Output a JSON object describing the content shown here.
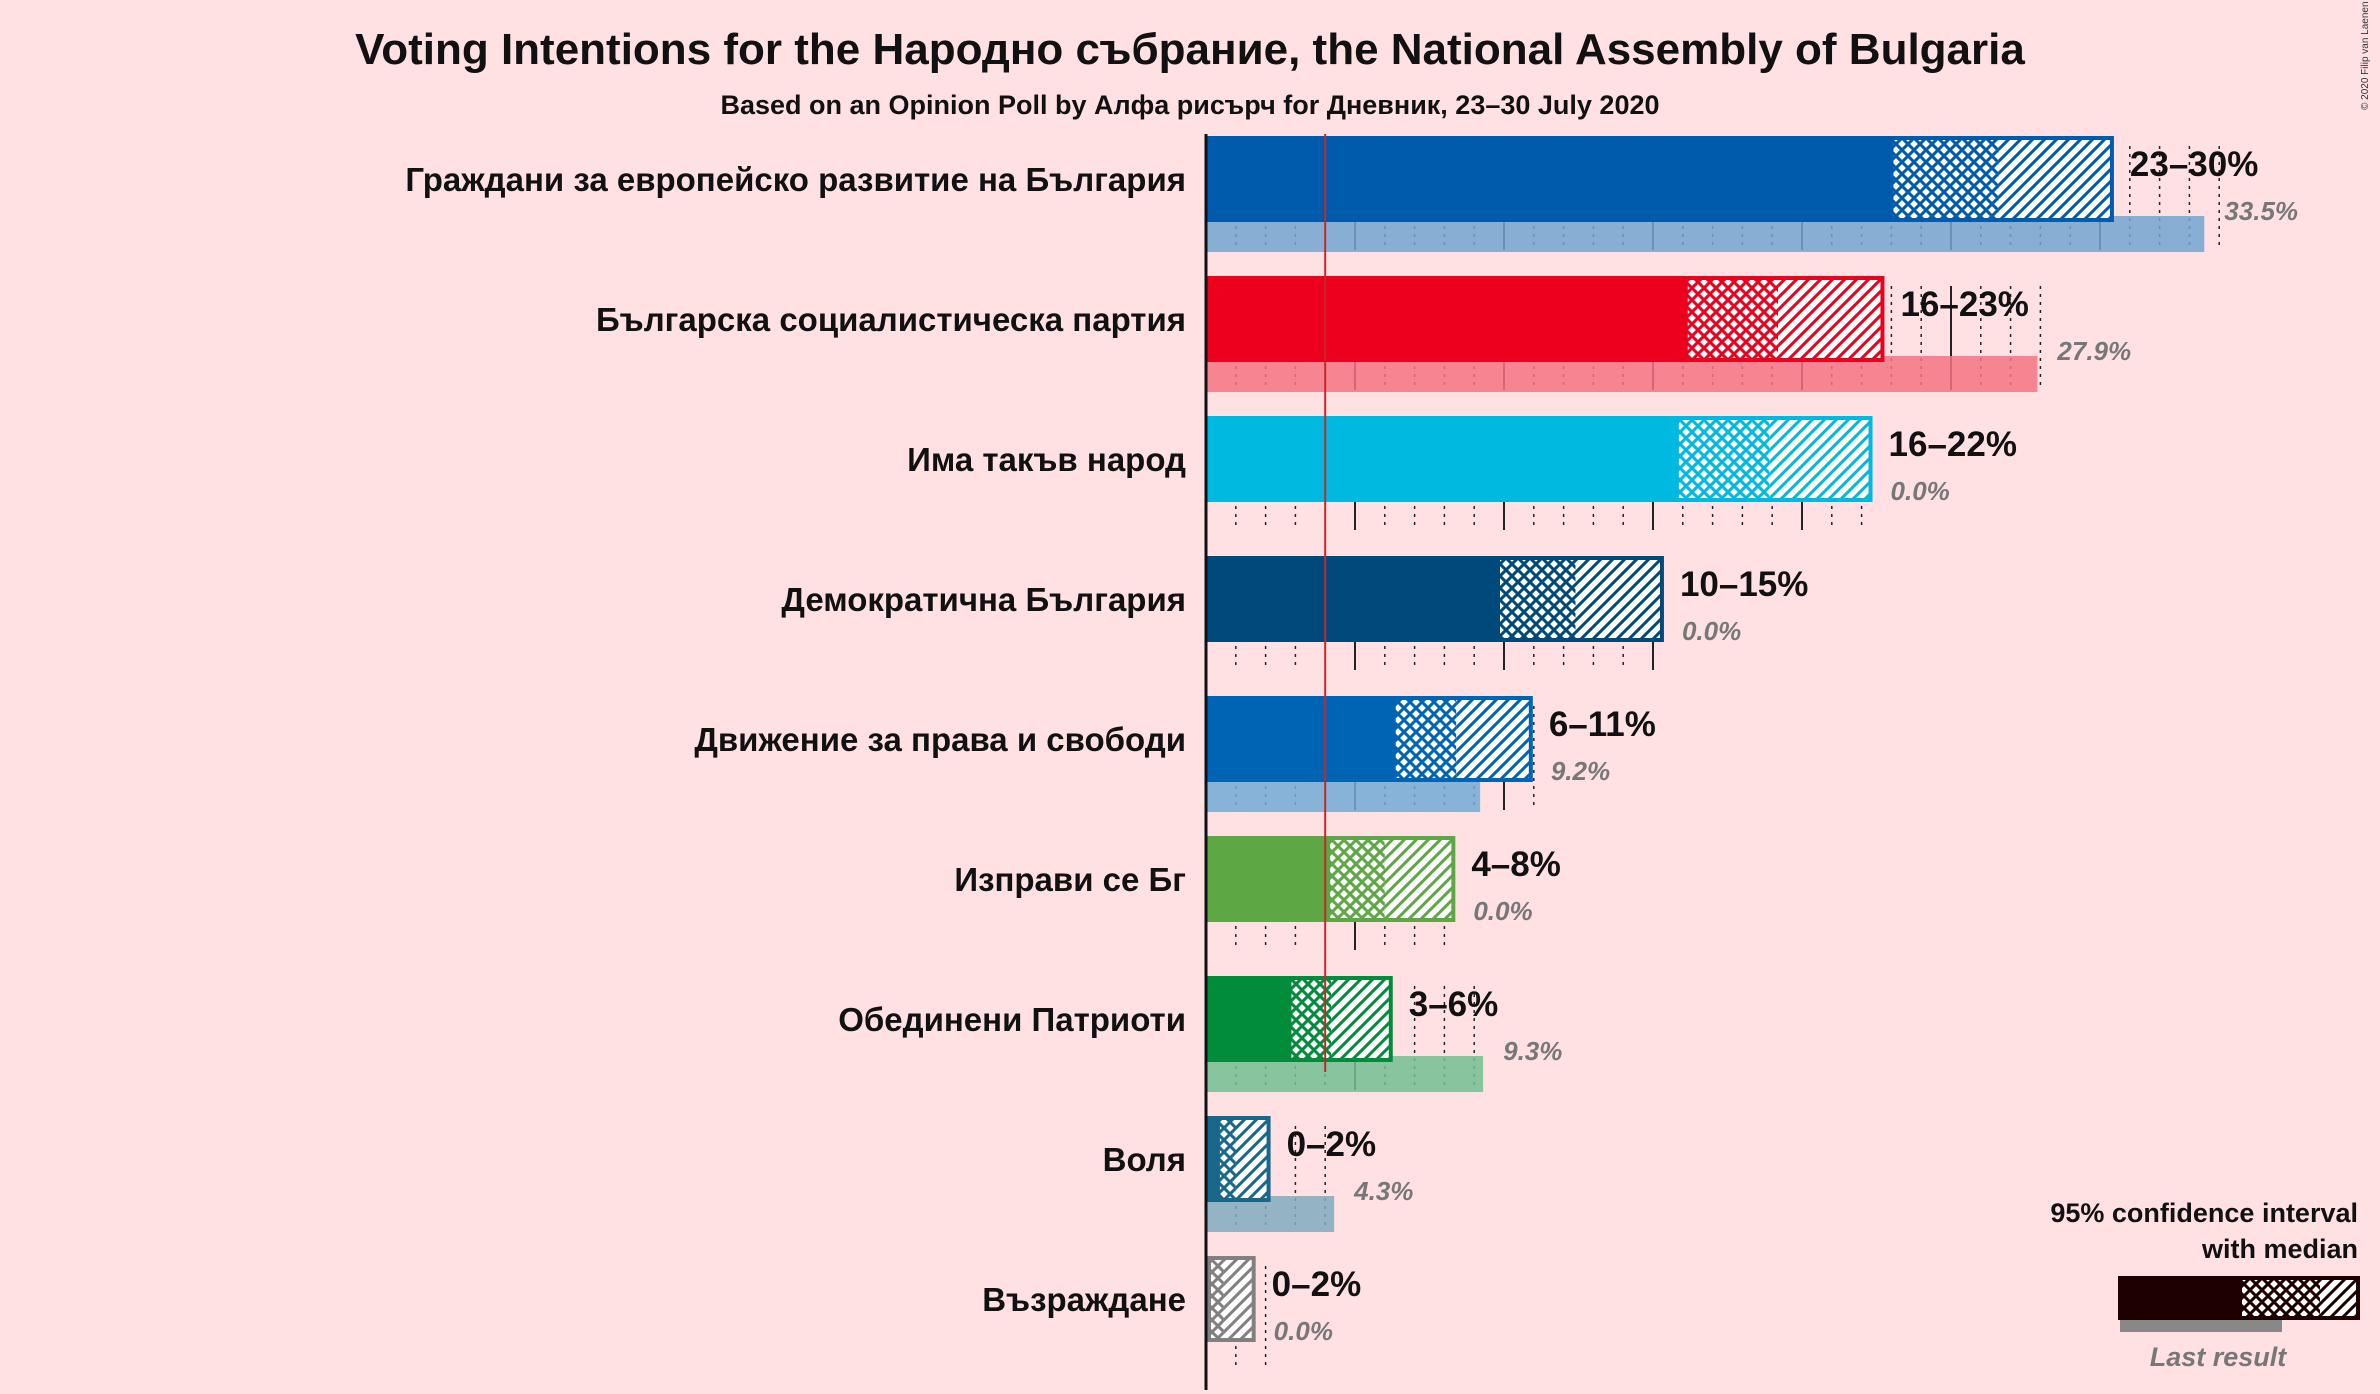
{
  "chart_data": {
    "type": "bar",
    "title": "Voting Intentions for the Народно събрание, the National Assembly of Bulgaria",
    "subtitle": "Based on an Opinion Poll by Алфа рисърч for Дневник, 23–30 July 2020",
    "copyright": "© 2020 Filip van Laenen",
    "threshold": 4,
    "xlim": [
      0,
      35
    ],
    "parties": [
      {
        "name": "Граждани за европейско развитие на България",
        "color": "#005BAC",
        "ci_low": 23.0,
        "median": 26.6,
        "ci_high": 30.4,
        "range_label": "23–30%",
        "last": 33.5,
        "last_label": "33.5%"
      },
      {
        "name": "Българска социалистическа партия",
        "color": "#EC001D",
        "ci_low": 16.1,
        "median": 19.2,
        "ci_high": 22.7,
        "range_label": "16–23%",
        "last": 27.9,
        "last_label": "27.9%"
      },
      {
        "name": "Има такъв народ",
        "color": "#00B9E0",
        "ci_low": 15.8,
        "median": 18.9,
        "ci_high": 22.3,
        "range_label": "16–22%",
        "last": 0.0,
        "last_label": "0.0%"
      },
      {
        "name": "Демократична България",
        "color": "#004A7B",
        "ci_low": 9.8,
        "median": 12.4,
        "ci_high": 15.3,
        "range_label": "10–15%",
        "last": 0.0,
        "last_label": "0.0%"
      },
      {
        "name": "Движение за права и свободи",
        "color": "#0064B4",
        "ci_low": 6.3,
        "median": 8.4,
        "ci_high": 10.9,
        "range_label": "6–11%",
        "last": 9.2,
        "last_label": "9.2%"
      },
      {
        "name": "Изправи се Бг",
        "color": "#5DA845",
        "ci_low": 4.1,
        "median": 6.0,
        "ci_high": 8.3,
        "range_label": "4–8%",
        "last": 0.0,
        "last_label": "0.0%"
      },
      {
        "name": "Обединени Патриоти",
        "color": "#008C3A",
        "ci_low": 2.8,
        "median": 4.2,
        "ci_high": 6.2,
        "range_label": "3–6%",
        "last": 9.3,
        "last_label": "9.3%"
      },
      {
        "name": "Воля",
        "color": "#19678C",
        "ci_low": 0.4,
        "median": 1.0,
        "ci_high": 2.1,
        "range_label": "0–2%",
        "last": 4.3,
        "last_label": "4.3%"
      },
      {
        "name": "Възраждане",
        "color": "#808080",
        "ci_low": 0.1,
        "median": 0.6,
        "ci_high": 1.6,
        "range_label": "0–2%",
        "last": 0.0,
        "last_label": "0.0%"
      }
    ]
  },
  "legend": {
    "line1": "95% confidence interval",
    "line2": "with median",
    "last_result": "Last result",
    "color": "#1E0000"
  }
}
